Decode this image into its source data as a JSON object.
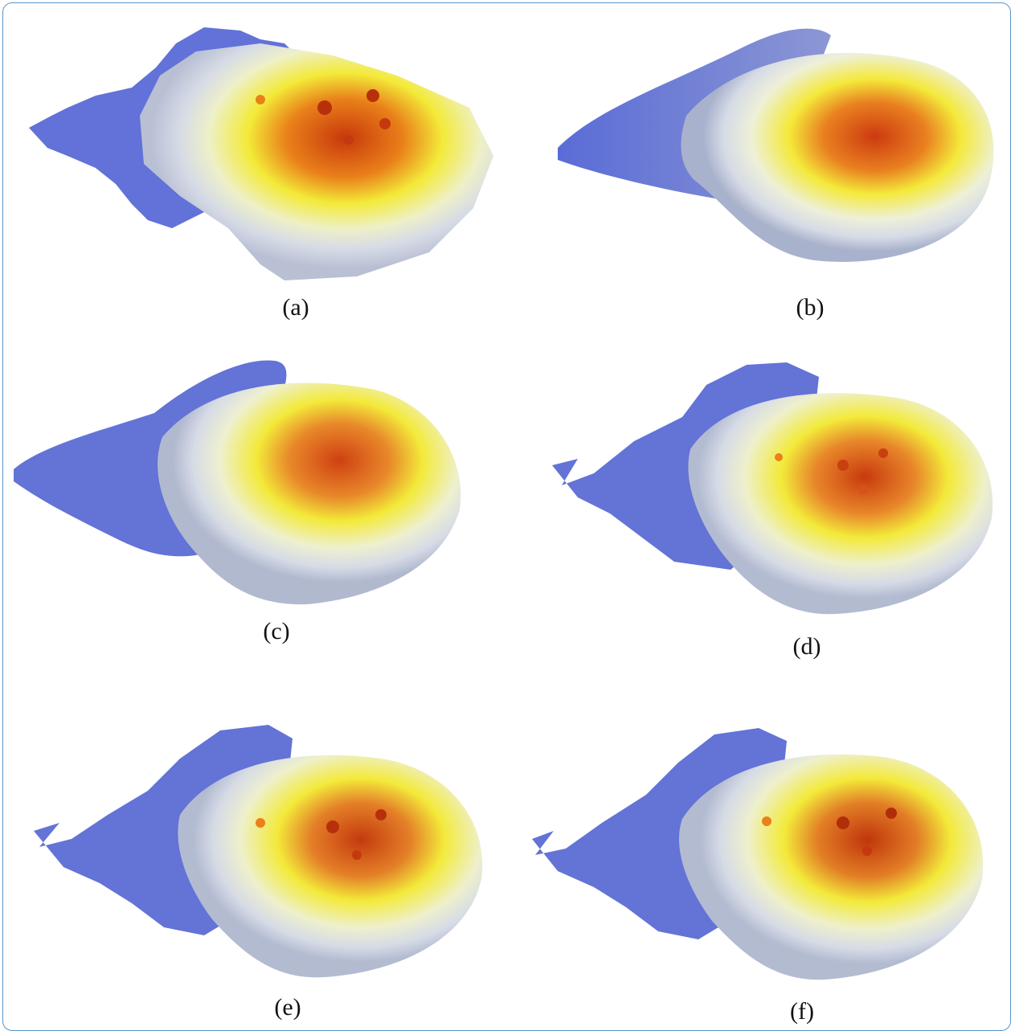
{
  "figure": {
    "border_color": "#5b93c7",
    "colors": {
      "low": "#5d6fd6",
      "mid": "#dfe3ea",
      "high_yellow": "#f4ef3a",
      "peak": "#d8400f"
    },
    "panels": [
      {
        "id": "a",
        "label": "(a)"
      },
      {
        "id": "b",
        "label": "(b)"
      },
      {
        "id": "c",
        "label": "(c)"
      },
      {
        "id": "d",
        "label": "(d)"
      },
      {
        "id": "e",
        "label": "(e)"
      },
      {
        "id": "f",
        "label": "(f)"
      }
    ]
  }
}
